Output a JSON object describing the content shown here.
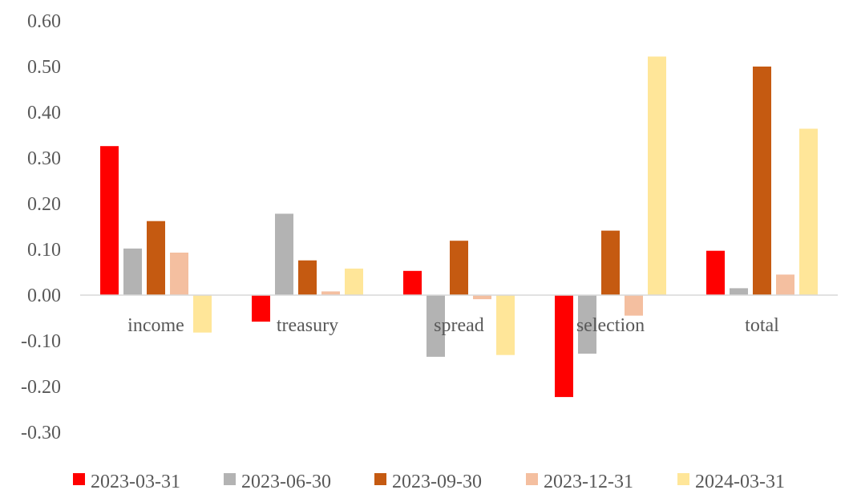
{
  "chart_data": {
    "type": "bar",
    "categories": [
      "income",
      "treasury",
      "spread",
      "selection",
      "total"
    ],
    "series": [
      {
        "name": "2023-03-31",
        "color": "#FF0000",
        "values": [
          0.326,
          -0.058,
          0.053,
          -0.223,
          0.097
        ]
      },
      {
        "name": "2023-06-30",
        "color": "#B3B3B3",
        "values": [
          0.102,
          0.178,
          -0.135,
          -0.128,
          0.015
        ]
      },
      {
        "name": "2023-09-30",
        "color": "#C55A11",
        "values": [
          0.162,
          0.076,
          0.119,
          0.141,
          0.5
        ]
      },
      {
        "name": "2023-12-31",
        "color": "#F4BFA0",
        "values": [
          0.093,
          0.008,
          -0.009,
          -0.045,
          0.045
        ]
      },
      {
        "name": "2024-03-31",
        "color": "#FFE699",
        "values": [
          -0.082,
          0.058,
          -0.131,
          0.522,
          0.364
        ]
      }
    ],
    "ylim": [
      -0.3,
      0.6
    ],
    "yticks": [
      "0.60",
      "0.50",
      "0.40",
      "0.30",
      "0.20",
      "0.10",
      "0.00",
      "-0.10",
      "-0.20",
      "-0.30"
    ],
    "grid": false,
    "legend": "bottom",
    "title": "",
    "xlabel": "",
    "ylabel": ""
  }
}
